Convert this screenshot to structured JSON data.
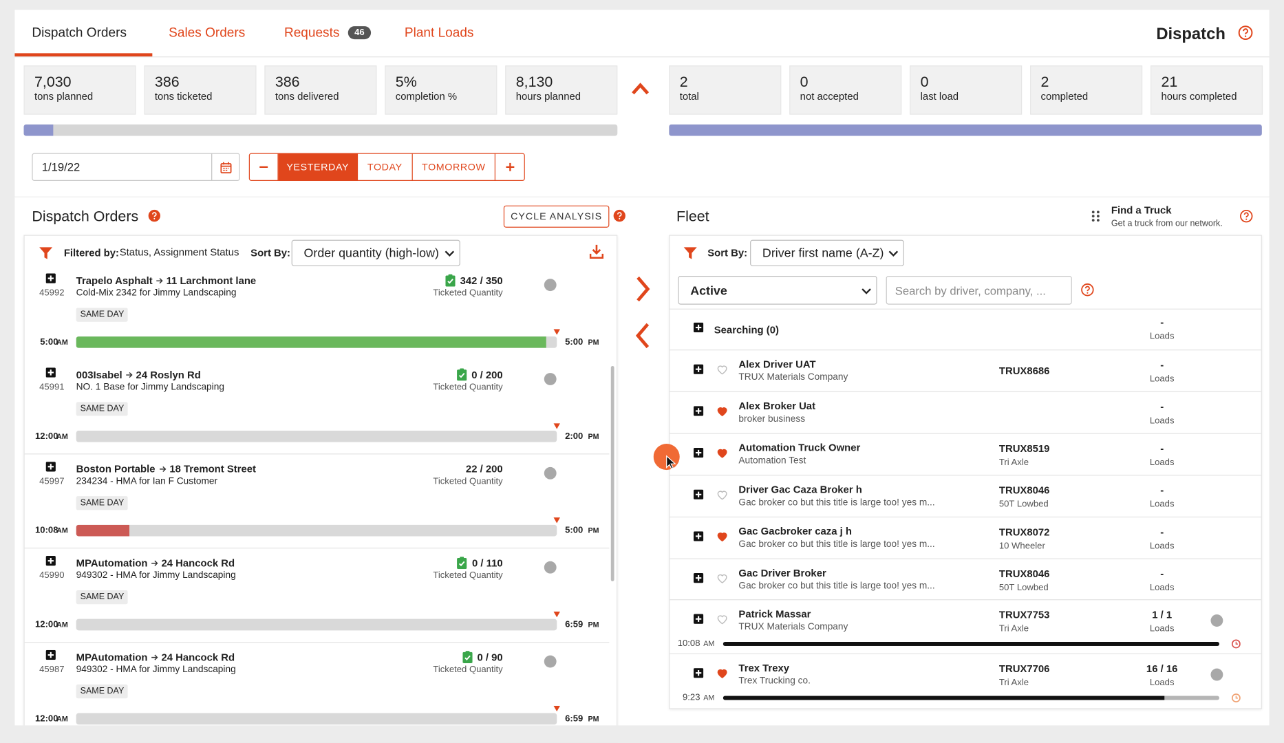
{
  "tabs": [
    {
      "label": "Dispatch Orders"
    },
    {
      "label": "Sales Orders"
    },
    {
      "label": "Requests",
      "badge": "46"
    },
    {
      "label": "Plant Loads"
    }
  ],
  "app_title": "Dispatch",
  "order_stats": [
    {
      "value": "7,030",
      "label": "tons planned"
    },
    {
      "value": "386",
      "label": "tons ticketed"
    },
    {
      "value": "386",
      "label": "tons delivered"
    },
    {
      "value": "5%",
      "label": "completion %"
    },
    {
      "value": "8,130",
      "label": "hours planned"
    }
  ],
  "fleet_stats": [
    {
      "value": "2",
      "label": "total"
    },
    {
      "value": "0",
      "label": "not accepted"
    },
    {
      "value": "0",
      "label": "last load"
    },
    {
      "value": "2",
      "label": "completed"
    },
    {
      "value": "21",
      "label": "hours completed"
    }
  ],
  "date": "1/19/22",
  "day_buttons": [
    "YESTERDAY",
    "TODAY",
    "TOMORROW"
  ],
  "orders_panel": {
    "title": "Dispatch Orders",
    "cycle_button": "CYCLE ANALYSIS",
    "filter_label": "Filtered by:",
    "filter_value": "Status, Assignment Status",
    "sort_label": "Sort By:",
    "sort_value": "Order quantity (high-low)"
  },
  "orders": [
    {
      "id": "45992",
      "from": "Trapelo Asphalt",
      "to": "11 Larchmont lane",
      "product": "Cold-Mix 2342 for Jimmy Landscaping",
      "quantity": "342 / 350",
      "checked": true,
      "caption": "Ticketed Quantity",
      "badge": "SAME DAY",
      "start": "5:00",
      "start_period": "AM",
      "end": "5:00",
      "end_period": "PM",
      "bar_color": "#6ab85c"
    },
    {
      "id": "45991",
      "from": "003Isabel",
      "to": "24 Roslyn Rd",
      "product": "NO. 1 Base for Jimmy Landscaping",
      "quantity": "0 / 200",
      "checked": true,
      "caption": "Ticketed Quantity",
      "badge": "SAME DAY",
      "start": "12:00",
      "start_period": "AM",
      "end": "2:00",
      "end_period": "PM",
      "bar_color": "#6ab85c"
    },
    {
      "id": "45997",
      "from": "Boston Portable",
      "to": "18 Tremont Street",
      "product": "234234 - HMA for Ian F Customer",
      "quantity": "22 / 200",
      "checked": false,
      "caption": "Ticketed Quantity",
      "badge": "SAME DAY",
      "start": "10:08",
      "start_period": "AM",
      "end": "5:00",
      "end_period": "PM",
      "bar_color": "#cc5a55"
    },
    {
      "id": "45990",
      "from": "MPAutomation",
      "to": "24 Hancock Rd",
      "product": "949302 - HMA for Jimmy Landscaping",
      "quantity": "0 / 110",
      "checked": true,
      "caption": "Ticketed Quantity",
      "badge": "SAME DAY",
      "start": "12:00",
      "start_period": "AM",
      "end": "6:59",
      "end_period": "PM",
      "bar_color": "#6ab85c"
    },
    {
      "id": "45987",
      "from": "MPAutomation",
      "to": "24 Hancock Rd",
      "product": "949302 - HMA for Jimmy Landscaping",
      "quantity": "0 / 90",
      "checked": true,
      "caption": "Ticketed Quantity",
      "badge": "SAME DAY",
      "start": "12:00",
      "start_period": "AM",
      "end": "6:59",
      "end_period": "PM",
      "bar_color": "#6ab85c"
    }
  ],
  "fleet_panel": {
    "title": "Fleet",
    "find_title": "Find a Truck",
    "find_subtitle": "Get a truck from our network.",
    "sort_label": "Sort By:",
    "sort_value": "Driver first name (A-Z)",
    "status_value": "Active",
    "search_placeholder": "Search by driver, company, ..."
  },
  "searching": {
    "label": "Searching (0)",
    "loads": "-",
    "caption": "Loads"
  },
  "trucks": [
    {
      "name": "Alex Driver UAT",
      "company": "TRUX Materials Company",
      "truck": "TRUX8686",
      "loads": "-",
      "caption": "Loads",
      "favorite": false
    },
    {
      "name": "Alex Broker Uat",
      "company": "broker business",
      "loads": "-",
      "caption": "Loads",
      "favorite": true
    },
    {
      "name": "Automation Truck Owner",
      "company": "Automation Test",
      "truck": "TRUX8519",
      "truck_type": "Tri Axle",
      "loads": "-",
      "caption": "Loads",
      "favorite": true
    },
    {
      "name": "Driver Gac Caza Broker h",
      "company": "Gac broker co but this title is large too! yes m...",
      "truck": "TRUX8046",
      "truck_type": "50T Lowbed",
      "loads": "-",
      "caption": "Loads",
      "favorite": false
    },
    {
      "name": "Gac Gacbroker caza j h",
      "company": "Gac broker co but this title is large too! yes m...",
      "truck": "TRUX8072",
      "truck_type": "10 Wheeler",
      "loads": "-",
      "caption": "Loads",
      "favorite": true
    },
    {
      "name": "Gac Driver Broker",
      "company": "Gac broker co but this title is large too! yes m...",
      "truck": "TRUX8046",
      "truck_type": "50T Lowbed",
      "loads": "-",
      "caption": "Loads",
      "favorite": false
    },
    {
      "name": "Patrick Massar",
      "company": "TRUX Materials Company",
      "truck": "TRUX7753",
      "truck_type": "Tri Axle",
      "loads": "1 / 1",
      "caption": "Loads",
      "favorite": false,
      "trip": {
        "start": "10:08",
        "period": "AM",
        "progress": 100,
        "clock_color": "#d9534f"
      }
    },
    {
      "name": "Trex Trexy",
      "company": "Trex Trucking co.",
      "truck": "TRUX7706",
      "truck_type": "Tri Axle",
      "loads": "16 / 16",
      "caption": "Loads",
      "favorite": true,
      "trip": {
        "start": "9:23",
        "period": "AM",
        "progress": 89,
        "clock_color": "#f0a070"
      }
    }
  ]
}
